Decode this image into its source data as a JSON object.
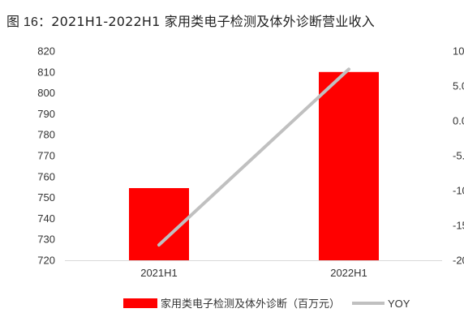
{
  "figure": {
    "title_prefix": "图 16：",
    "title": "2021H1-2022H1 家用类电子检测及体外诊断营业收入"
  },
  "colors": {
    "bar": "#ff0000",
    "line": "#c0c0c0",
    "axis": "#d9d9d9"
  },
  "chart_data": {
    "type": "bar",
    "categories": [
      "2021H1",
      "2022H1"
    ],
    "series": [
      {
        "name": "家用类电子检测及体外诊断（百万元）",
        "type": "bar",
        "axis": "left",
        "values": [
          754.5,
          810.0
        ]
      },
      {
        "name": "YOY",
        "type": "line",
        "axis": "right",
        "values": [
          -17.8,
          7.4
        ]
      }
    ],
    "y_left": {
      "lim": [
        720,
        820
      ],
      "ticks": [
        820,
        810,
        800,
        790,
        780,
        770,
        760,
        750,
        740,
        730,
        720
      ]
    },
    "y_right": {
      "lim": [
        -20,
        10
      ],
      "ticks": [
        "10",
        "5.0",
        "0.0",
        "-5.",
        "-10",
        "-15",
        "-20"
      ]
    },
    "legend": {
      "position": "bottom"
    },
    "grid": false
  }
}
